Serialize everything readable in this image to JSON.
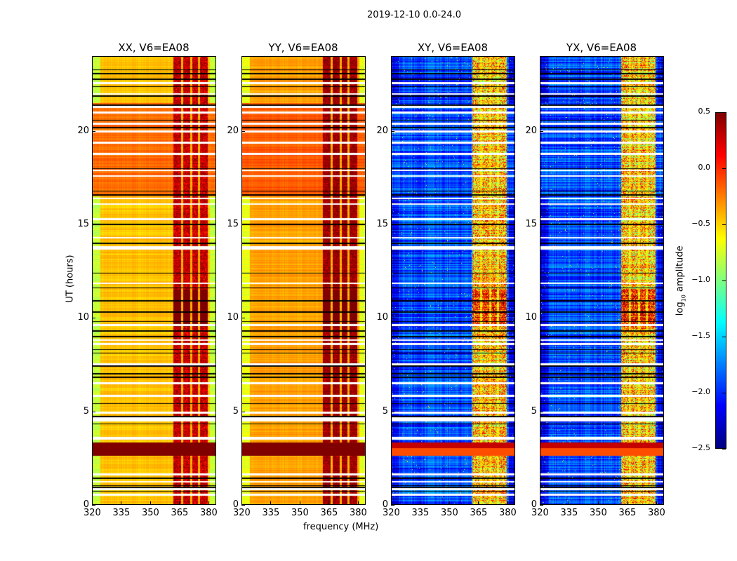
{
  "chart_data": {
    "type": "heatmap",
    "title": "2019-12-10 0.0-24.0",
    "xlabel": "frequency (MHz)",
    "ylabel": "UT (hours)",
    "xlim": [
      320,
      384
    ],
    "ylim": [
      0,
      24
    ],
    "xticks": [
      "320",
      "335",
      "350",
      "365",
      "380"
    ],
    "yticks": [
      "0",
      "5",
      "10",
      "15",
      "20"
    ],
    "colorbar": {
      "label_main": "log",
      "label_sub": "10",
      "label_rest": " amplitude",
      "range": [
        -2.5,
        0.5
      ],
      "ticks": [
        "0.5",
        "0.0",
        "−0.5",
        "−1.0",
        "−1.5",
        "−2.0",
        "−2.5"
      ],
      "colormap": "jet"
    },
    "panels": [
      {
        "title": "XX, V6=EA08",
        "base_level": -0.45,
        "edge_level": -0.9,
        "rfi_level": 0.2,
        "evening_level": -0.2
      },
      {
        "title": "YY, V6=EA08",
        "base_level": -0.35,
        "edge_level": -0.8,
        "rfi_level": 0.35,
        "evening_level": -0.15
      },
      {
        "title": "XY, V6=EA08",
        "base_level": -1.9,
        "edge_level": -2.2,
        "rfi_level": -0.7,
        "evening_level": -1.9
      },
      {
        "title": "YX, V6=EA08",
        "base_level": -1.9,
        "edge_level": -2.2,
        "rfi_level": -0.7,
        "evening_level": -1.9
      }
    ],
    "rfi_channels_mhz": [
      [
        362,
        366
      ],
      [
        367,
        371
      ],
      [
        372,
        375
      ],
      [
        376,
        380
      ]
    ],
    "saturated_hours": [
      2.6,
      3.3
    ],
    "flagged_white_hours": [
      0.5,
      0.8,
      1.2,
      1.6,
      3.5,
      3.55,
      4.5,
      4.6,
      4.9,
      5.8,
      6.5,
      7.5,
      8.6,
      8.8,
      9.6,
      11.85,
      13.7,
      13.8,
      14.3,
      15.3,
      16.1,
      16.4,
      17.6,
      17.9,
      18.8,
      19.4,
      20.0,
      20.4,
      21.0,
      21.3,
      22.0,
      22.6
    ],
    "flagged_black_hours": [
      0.7,
      0.9,
      1.0,
      1.4,
      4.3,
      4.7,
      5.4,
      6.8,
      7.0,
      7.4,
      8.1,
      8.3,
      9.0,
      9.3,
      9.8,
      10.3,
      10.9,
      11.6,
      12.4,
      14.0,
      15.0,
      16.6,
      16.8,
      18.0,
      20.2,
      20.6,
      21.4,
      21.9,
      22.4,
      22.8,
      23.1,
      23.3
    ]
  }
}
